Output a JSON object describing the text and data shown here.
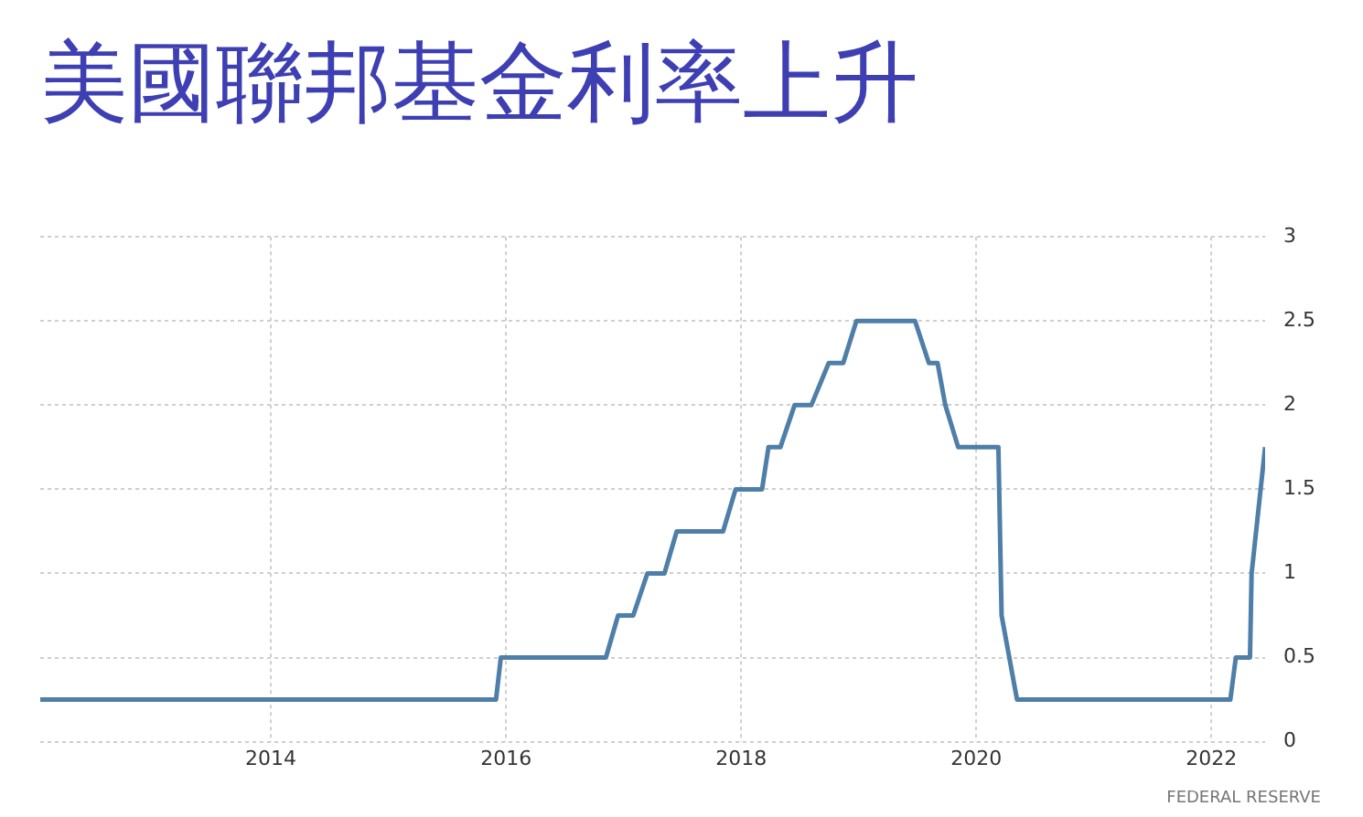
{
  "chart_data": {
    "type": "line",
    "title": "美國聯邦基金利率上升",
    "x": [
      "2012-01-15",
      "2015-12-01",
      "2015-12-16",
      "2016-11-07",
      "2016-12-15",
      "2017-01-31",
      "2017-03-16",
      "2017-05-08",
      "2017-06-15",
      "2017-11-06",
      "2017-12-15",
      "2018-03-07",
      "2018-03-27",
      "2018-05-03",
      "2018-06-16",
      "2018-08-07",
      "2018-09-30",
      "2018-11-14",
      "2018-12-25",
      "2019-06-25",
      "2019-08-07",
      "2019-09-03",
      "2019-09-27",
      "2019-11-06",
      "2020-03-10",
      "2020-03-20",
      "2020-05-07",
      "2022-03-01",
      "2022-03-18",
      "2022-05-01",
      "2022-05-06",
      "2022-06-17"
    ],
    "series": [
      {
        "color": "#4f7fa8",
        "values": [
          0.25,
          0.25,
          0.5,
          0.5,
          0.75,
          0.75,
          1,
          1,
          1.25,
          1.25,
          1.5,
          1.5,
          1.75,
          1.75,
          2,
          2,
          2.25,
          2.25,
          2.5,
          2.5,
          2.25,
          2.25,
          2,
          1.75,
          1.75,
          0.75,
          0.25,
          0.25,
          0.5,
          0.5,
          1,
          1.75
        ]
      }
    ],
    "xlim": [
      "2012-01-15",
      "2022-06-17"
    ],
    "xticks": [
      "2014",
      "2016",
      "2018",
      "2020",
      "2022"
    ],
    "ylim": [
      0,
      3
    ],
    "yticks": [
      0,
      0.5,
      1,
      1.5,
      2,
      2.5,
      3
    ],
    "grid": true,
    "annotations": [
      "FEDERAL RESERVE"
    ]
  }
}
